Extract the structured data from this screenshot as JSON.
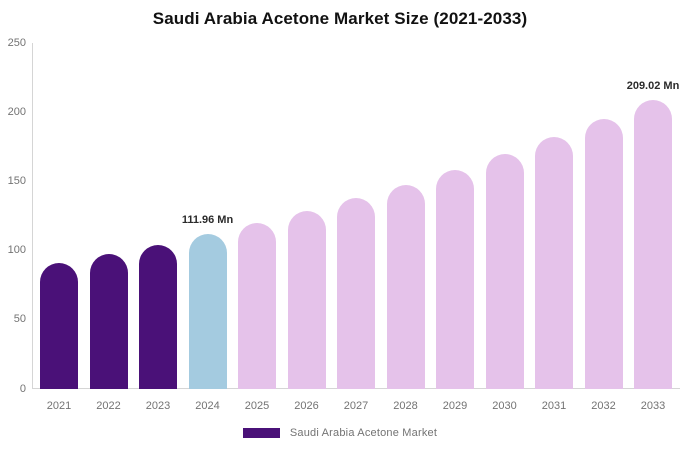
{
  "title": "Saudi Arabia Acetone Market Size (2021-2033)",
  "legend": {
    "label": "Saudi Arabia Acetone Market",
    "swatch_color": "#4A1178"
  },
  "colors": {
    "historical_bar": "#4A1178",
    "base_year_bar": "#A4CBE0",
    "forecast_bar": "#E5C2EA",
    "axis_line": "#D5D5D5",
    "tick_text": "#737373",
    "value_label_text": "#2B2B2B",
    "title_text": "#111111"
  },
  "chart_data": {
    "type": "bar",
    "title": "Saudi Arabia Acetone Market Size (2021-2033)",
    "categories": [
      "2021",
      "2022",
      "2023",
      "2024",
      "2025",
      "2026",
      "2027",
      "2028",
      "2029",
      "2030",
      "2031",
      "2032",
      "2033"
    ],
    "values": [
      90.8,
      97.3,
      104.3,
      111.96,
      120.0,
      128.6,
      137.8,
      147.7,
      158.3,
      169.7,
      181.8,
      194.9,
      209.02
    ],
    "unit": "Mn",
    "bar_colors": [
      "#4A1178",
      "#4A1178",
      "#4A1178",
      "#A4CBE0",
      "#E5C2EA",
      "#E5C2EA",
      "#E5C2EA",
      "#E5C2EA",
      "#E5C2EA",
      "#E5C2EA",
      "#E5C2EA",
      "#E5C2EA",
      "#E5C2EA"
    ],
    "annotations": [
      {
        "category": "2024",
        "text": "111.96 Mn"
      },
      {
        "category": "2033",
        "text": "209.02 Mn"
      }
    ],
    "xlabel": "",
    "ylabel": "",
    "ylim": [
      0,
      250
    ],
    "yticks": [
      0,
      50,
      100,
      150,
      200,
      250
    ],
    "grid": false,
    "legend_position": "bottom",
    "legend_entries": [
      "Saudi Arabia Acetone Market"
    ]
  }
}
